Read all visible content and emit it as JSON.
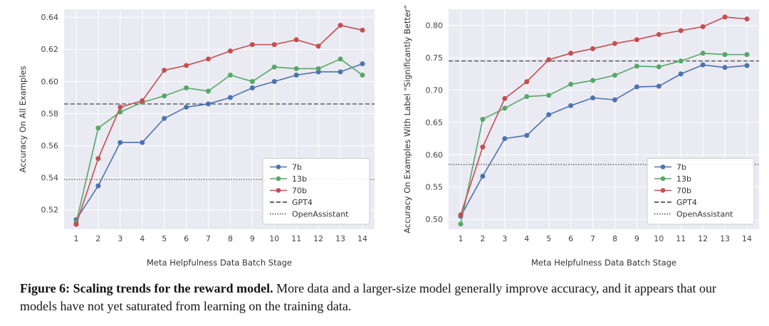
{
  "figure": {
    "caption_bold": "Figure 6: Scaling trends for the reward model.",
    "caption_rest": " More data and a larger-size model generally improve accuracy, and it appears that our models have not yet saturated from learning on the training data."
  },
  "palette": {
    "plot_background": "#EAEAF2",
    "grid": "#FFFFFF",
    "blue_7b": "#4C72B0",
    "green_13b": "#55A868",
    "red_70b": "#C44E52",
    "reference_line": "#333333"
  },
  "chart_data": [
    {
      "type": "line",
      "title": "",
      "xlabel": "Meta Helpfulness Data Batch Stage",
      "ylabel": "Accuracy On All Examples",
      "x": [
        1,
        2,
        3,
        4,
        5,
        6,
        7,
        8,
        9,
        10,
        11,
        12,
        13,
        14
      ],
      "yticks": [
        0.52,
        0.54,
        0.56,
        0.58,
        0.6,
        0.62,
        0.64
      ],
      "ylim": [
        0.508,
        0.645
      ],
      "grid": true,
      "legend_position": "lower right",
      "series": [
        {
          "name": "7b",
          "color": "#4C72B0",
          "values": [
            0.514,
            0.535,
            0.562,
            0.562,
            0.577,
            0.584,
            0.586,
            0.59,
            0.596,
            0.6,
            0.604,
            0.606,
            0.606,
            0.611
          ]
        },
        {
          "name": "13b",
          "color": "#55A868",
          "values": [
            0.512,
            0.571,
            0.581,
            0.587,
            0.591,
            0.596,
            0.594,
            0.604,
            0.6,
            0.609,
            0.608,
            0.608,
            0.614,
            0.604
          ]
        },
        {
          "name": "70b",
          "color": "#C44E52",
          "values": [
            0.511,
            0.552,
            0.584,
            0.588,
            0.607,
            0.61,
            0.614,
            0.619,
            0.623,
            0.623,
            0.626,
            0.622,
            0.635,
            0.632
          ]
        }
      ],
      "reference_lines": [
        {
          "name": "GPT4",
          "value": 0.586,
          "style": "dashed"
        },
        {
          "name": "OpenAssistant",
          "value": 0.539,
          "style": "dotted"
        }
      ],
      "legend": [
        "7b",
        "13b",
        "70b",
        "GPT4",
        "OpenAssistant"
      ]
    },
    {
      "type": "line",
      "title": "",
      "xlabel": "Meta Helpfulness Data Batch Stage",
      "ylabel": "Accuracy On Examples With Label \"Significantly Better\"",
      "x": [
        1,
        2,
        3,
        4,
        5,
        6,
        7,
        8,
        9,
        10,
        11,
        12,
        13,
        14
      ],
      "yticks": [
        0.5,
        0.55,
        0.6,
        0.65,
        0.7,
        0.75,
        0.8
      ],
      "ylim": [
        0.485,
        0.825
      ],
      "grid": true,
      "legend_position": "lower right",
      "series": [
        {
          "name": "7b",
          "color": "#4C72B0",
          "values": [
            0.505,
            0.567,
            0.625,
            0.63,
            0.662,
            0.676,
            0.688,
            0.685,
            0.705,
            0.706,
            0.725,
            0.739,
            0.735,
            0.738
          ]
        },
        {
          "name": "13b",
          "color": "#55A868",
          "values": [
            0.493,
            0.655,
            0.672,
            0.69,
            0.692,
            0.709,
            0.715,
            0.723,
            0.737,
            0.736,
            0.745,
            0.757,
            0.755,
            0.755
          ]
        },
        {
          "name": "70b",
          "color": "#C44E52",
          "values": [
            0.507,
            0.612,
            0.687,
            0.713,
            0.747,
            0.757,
            0.764,
            0.772,
            0.778,
            0.786,
            0.792,
            0.798,
            0.813,
            0.81
          ]
        }
      ],
      "reference_lines": [
        {
          "name": "GPT4",
          "value": 0.745,
          "style": "dashed"
        },
        {
          "name": "OpenAssistant",
          "value": 0.585,
          "style": "dotted"
        }
      ],
      "legend": [
        "7b",
        "13b",
        "70b",
        "GPT4",
        "OpenAssistant"
      ]
    }
  ]
}
